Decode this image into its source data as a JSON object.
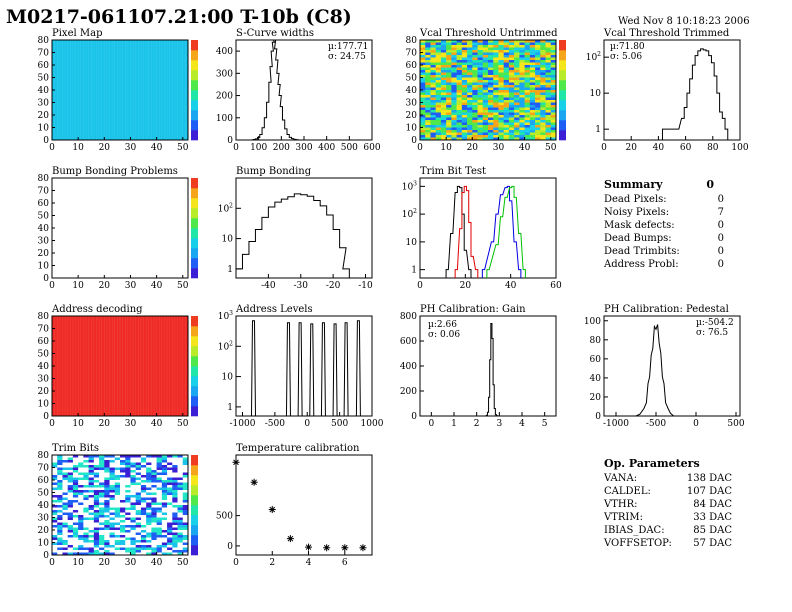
{
  "header": {
    "title": "M0217-061107.21:00 T-10b (C8)",
    "timestamp": "Wed Nov  8 10:18:23 2006"
  },
  "colors": {
    "histogram_line": "#000000",
    "map_cyan": "#19c3ea",
    "map_red": "#f02a24",
    "trim_red": "#e00000",
    "trim_blue": "#0000e0",
    "trim_green": "#00c000"
  },
  "chart_data": [
    {
      "id": "pixel_map",
      "type": "heatmap",
      "title": "Pixel Map",
      "xlim": [
        0,
        52
      ],
      "ylim": [
        0,
        80
      ],
      "x_ticks": [
        0,
        10,
        20,
        30,
        40,
        50
      ],
      "y_ticks": [
        0,
        10,
        20,
        30,
        40,
        50,
        60,
        70,
        80
      ],
      "fill": "uniform cyan"
    },
    {
      "id": "scurve_widths",
      "type": "bar",
      "title": "S-Curve widths",
      "stats": [
        "µ:177.71",
        "σ: 24.75"
      ],
      "xlim": [
        0,
        600
      ],
      "ylim": [
        0,
        450
      ],
      "x_ticks": [
        0,
        100,
        200,
        300,
        400,
        500,
        600
      ],
      "y_ticks": [
        0,
        100,
        200,
        300,
        400
      ],
      "x": [
        80,
        90,
        100,
        110,
        120,
        130,
        140,
        150,
        155,
        160,
        165,
        170,
        175,
        180,
        185,
        190,
        195,
        200,
        210,
        220,
        230,
        240,
        250,
        260,
        270
      ],
      "values": [
        2,
        5,
        12,
        25,
        55,
        100,
        170,
        260,
        330,
        400,
        440,
        450,
        410,
        360,
        300,
        250,
        200,
        150,
        90,
        50,
        25,
        12,
        6,
        3,
        1
      ]
    },
    {
      "id": "vcal_untrimmed",
      "type": "heatmap",
      "title": "Vcal Threshold Untrimmed",
      "xlim": [
        0,
        52
      ],
      "ylim": [
        0,
        80
      ],
      "x_ticks": [
        0,
        10,
        20,
        30,
        40,
        50
      ],
      "y_ticks": [
        0,
        10,
        20,
        30,
        40,
        50,
        60,
        70,
        80
      ],
      "fill": "random mixed colors"
    },
    {
      "id": "vcal_trimmed",
      "type": "bar",
      "title": "Vcal Threshold Trimmed",
      "stats": [
        "µ:71.80",
        "σ: 5.06"
      ],
      "log_y": true,
      "xlim": [
        0,
        100
      ],
      "ylim": [
        0.5,
        300
      ],
      "x_ticks": [
        0,
        20,
        40,
        60,
        80,
        100
      ],
      "y_tick_labels": [
        "1",
        "10",
        "10^2"
      ],
      "x": [
        44,
        54,
        58,
        60,
        62,
        64,
        66,
        68,
        70,
        72,
        74,
        76,
        78,
        80,
        82,
        84,
        86,
        88,
        90
      ],
      "values": [
        1,
        1,
        2,
        4,
        10,
        25,
        60,
        110,
        150,
        170,
        160,
        150,
        110,
        70,
        30,
        10,
        3,
        2,
        1
      ]
    },
    {
      "id": "bump_bonding_problems",
      "type": "heatmap",
      "title": "Bump Bonding Problems",
      "xlim": [
        0,
        52
      ],
      "ylim": [
        0,
        80
      ],
      "x_ticks": [
        0,
        10,
        20,
        30,
        40,
        50
      ],
      "y_ticks": [
        0,
        10,
        20,
        30,
        40,
        50,
        60,
        70,
        80
      ],
      "fill": "empty"
    },
    {
      "id": "bump_bonding",
      "type": "bar",
      "title": "Bump Bonding",
      "log_y": true,
      "xlim": [
        -50,
        -8
      ],
      "ylim": [
        0.5,
        1000
      ],
      "x_ticks": [
        -40,
        -30,
        -20,
        -10
      ],
      "y_tick_labels": [
        "1",
        "10",
        "10^2"
      ],
      "x": [
        -49,
        -47,
        -45,
        -43,
        -41,
        -39,
        -37,
        -35,
        -33,
        -31,
        -29,
        -27,
        -25,
        -23,
        -21,
        -19,
        -17,
        -16
      ],
      "values": [
        1,
        3,
        8,
        20,
        50,
        110,
        160,
        200,
        240,
        300,
        280,
        250,
        180,
        120,
        60,
        20,
        5,
        1
      ]
    },
    {
      "id": "trim_bit_test",
      "type": "line",
      "title": "Trim Bit Test",
      "log_y": true,
      "xlim": [
        0,
        60
      ],
      "ylim": [
        0.5,
        2000
      ],
      "x_ticks": [
        0,
        20,
        40,
        60
      ],
      "y_tick_labels": [
        "1",
        "10",
        "10^2",
        "10^3"
      ],
      "series": [
        {
          "x": [
            12,
            14,
            16,
            17,
            18,
            19,
            20,
            22
          ],
          "values": [
            1,
            20,
            600,
            1000,
            900,
            100,
            5,
            1
          ]
        },
        {
          "x": [
            16,
            18,
            19,
            20,
            21,
            22,
            23,
            25
          ],
          "values": [
            1,
            30,
            600,
            1000,
            700,
            50,
            3,
            1
          ]
        },
        {
          "x": [
            28,
            32,
            34,
            36,
            38,
            39,
            40,
            42,
            44
          ],
          "values": [
            1,
            10,
            100,
            500,
            900,
            1000,
            300,
            10,
            1
          ]
        },
        {
          "x": [
            30,
            34,
            36,
            38,
            40,
            41,
            42,
            44,
            46
          ],
          "values": [
            1,
            8,
            80,
            400,
            900,
            1000,
            400,
            20,
            1
          ]
        }
      ]
    },
    {
      "id": "address_decoding",
      "type": "heatmap",
      "title": "Address decoding",
      "xlim": [
        0,
        52
      ],
      "ylim": [
        0,
        80
      ],
      "x_ticks": [
        0,
        10,
        20,
        30,
        40,
        50
      ],
      "y_ticks": [
        0,
        10,
        20,
        30,
        40,
        50,
        60,
        70,
        80
      ],
      "fill": "uniform red"
    },
    {
      "id": "address_levels",
      "type": "bar",
      "title": "Address Levels",
      "log_y": true,
      "xlim": [
        -1100,
        1000
      ],
      "ylim": [
        0.5,
        1000
      ],
      "x_ticks": [
        -1000,
        -500,
        0,
        500,
        1000
      ],
      "y_tick_labels": [
        "1",
        "10",
        "10^2",
        "10^3"
      ],
      "x": [
        -830,
        -290,
        -110,
        70,
        250,
        430,
        600,
        790
      ],
      "values": [
        700,
        600,
        600,
        550,
        600,
        550,
        600,
        700
      ]
    },
    {
      "id": "ph_gain",
      "type": "bar",
      "title": "PH Calibration: Gain",
      "stats": [
        "µ:2.66",
        "σ: 0.06"
      ],
      "xlim": [
        -0.5,
        5.5
      ],
      "ylim": [
        0,
        800
      ],
      "x_ticks": [
        0,
        1,
        2,
        3,
        4,
        5
      ],
      "y_ticks": [
        0,
        200,
        400,
        600,
        800
      ],
      "x": [
        2.45,
        2.5,
        2.55,
        2.6,
        2.65,
        2.7,
        2.75,
        2.8,
        2.85,
        2.9
      ],
      "values": [
        5,
        30,
        150,
        450,
        740,
        620,
        250,
        60,
        10,
        2
      ]
    },
    {
      "id": "ph_pedestal",
      "type": "line",
      "title": "PH Calibration: Pedestal",
      "stats": [
        "µ:-504.2",
        "σ: 76.5"
      ],
      "xlim": [
        -1150,
        550
      ],
      "ylim": [
        0,
        105
      ],
      "x_ticks": [
        -1000,
        -500,
        0,
        500
      ],
      "y_ticks": [
        0,
        20,
        40,
        60,
        80,
        100
      ],
      "x": [
        -750,
        -700,
        -650,
        -620,
        -600,
        -580,
        -560,
        -540,
        -520,
        -500,
        -480,
        -460,
        -440,
        -420,
        -400,
        -380,
        -350,
        -320,
        -280
      ],
      "values": [
        0,
        2,
        8,
        18,
        30,
        45,
        60,
        75,
        90,
        95,
        92,
        80,
        62,
        45,
        30,
        18,
        8,
        3,
        0
      ]
    },
    {
      "id": "trim_bits",
      "type": "heatmap",
      "title": "Trim Bits",
      "xlim": [
        0,
        52
      ],
      "ylim": [
        0,
        80
      ],
      "x_ticks": [
        0,
        10,
        20,
        30,
        40,
        50
      ],
      "y_ticks": [
        0,
        10,
        20,
        30,
        40,
        50,
        60,
        70,
        80
      ],
      "fill": "random blue, cyan, white"
    },
    {
      "id": "temperature_calibration",
      "type": "scatter",
      "title": "Temperature calibration",
      "xlim": [
        0,
        7.5
      ],
      "ylim": [
        -150,
        1500
      ],
      "x_ticks": [
        0,
        2,
        4,
        6
      ],
      "y_ticks": [
        0,
        500
      ],
      "x": [
        0,
        1,
        2,
        3,
        4,
        5,
        6,
        7
      ],
      "values": [
        1380,
        1050,
        600,
        120,
        -20,
        -30,
        -30,
        -30
      ]
    }
  ],
  "summary": {
    "title": "Summary",
    "value": "0",
    "rows": [
      {
        "label": "Dead Pixels:",
        "value": "0"
      },
      {
        "label": "Noisy Pixels:",
        "value": "7"
      },
      {
        "label": "Mask defects:",
        "value": "0"
      },
      {
        "label": "Dead Bumps:",
        "value": "0"
      },
      {
        "label": "Dead Trimbits:",
        "value": "0"
      },
      {
        "label": "Address Probl:",
        "value": "0"
      }
    ]
  },
  "op_parameters": {
    "title": "Op. Parameters",
    "rows": [
      {
        "label": "VANA:",
        "value": "138 DAC"
      },
      {
        "label": "CALDEL:",
        "value": "107 DAC"
      },
      {
        "label": "VTHR:",
        "value": "84 DAC"
      },
      {
        "label": "VTRIM:",
        "value": "33 DAC"
      },
      {
        "label": "IBIAS_DAC:",
        "value": "85 DAC"
      },
      {
        "label": "VOFFSETOP:",
        "value": "57 DAC"
      }
    ]
  }
}
